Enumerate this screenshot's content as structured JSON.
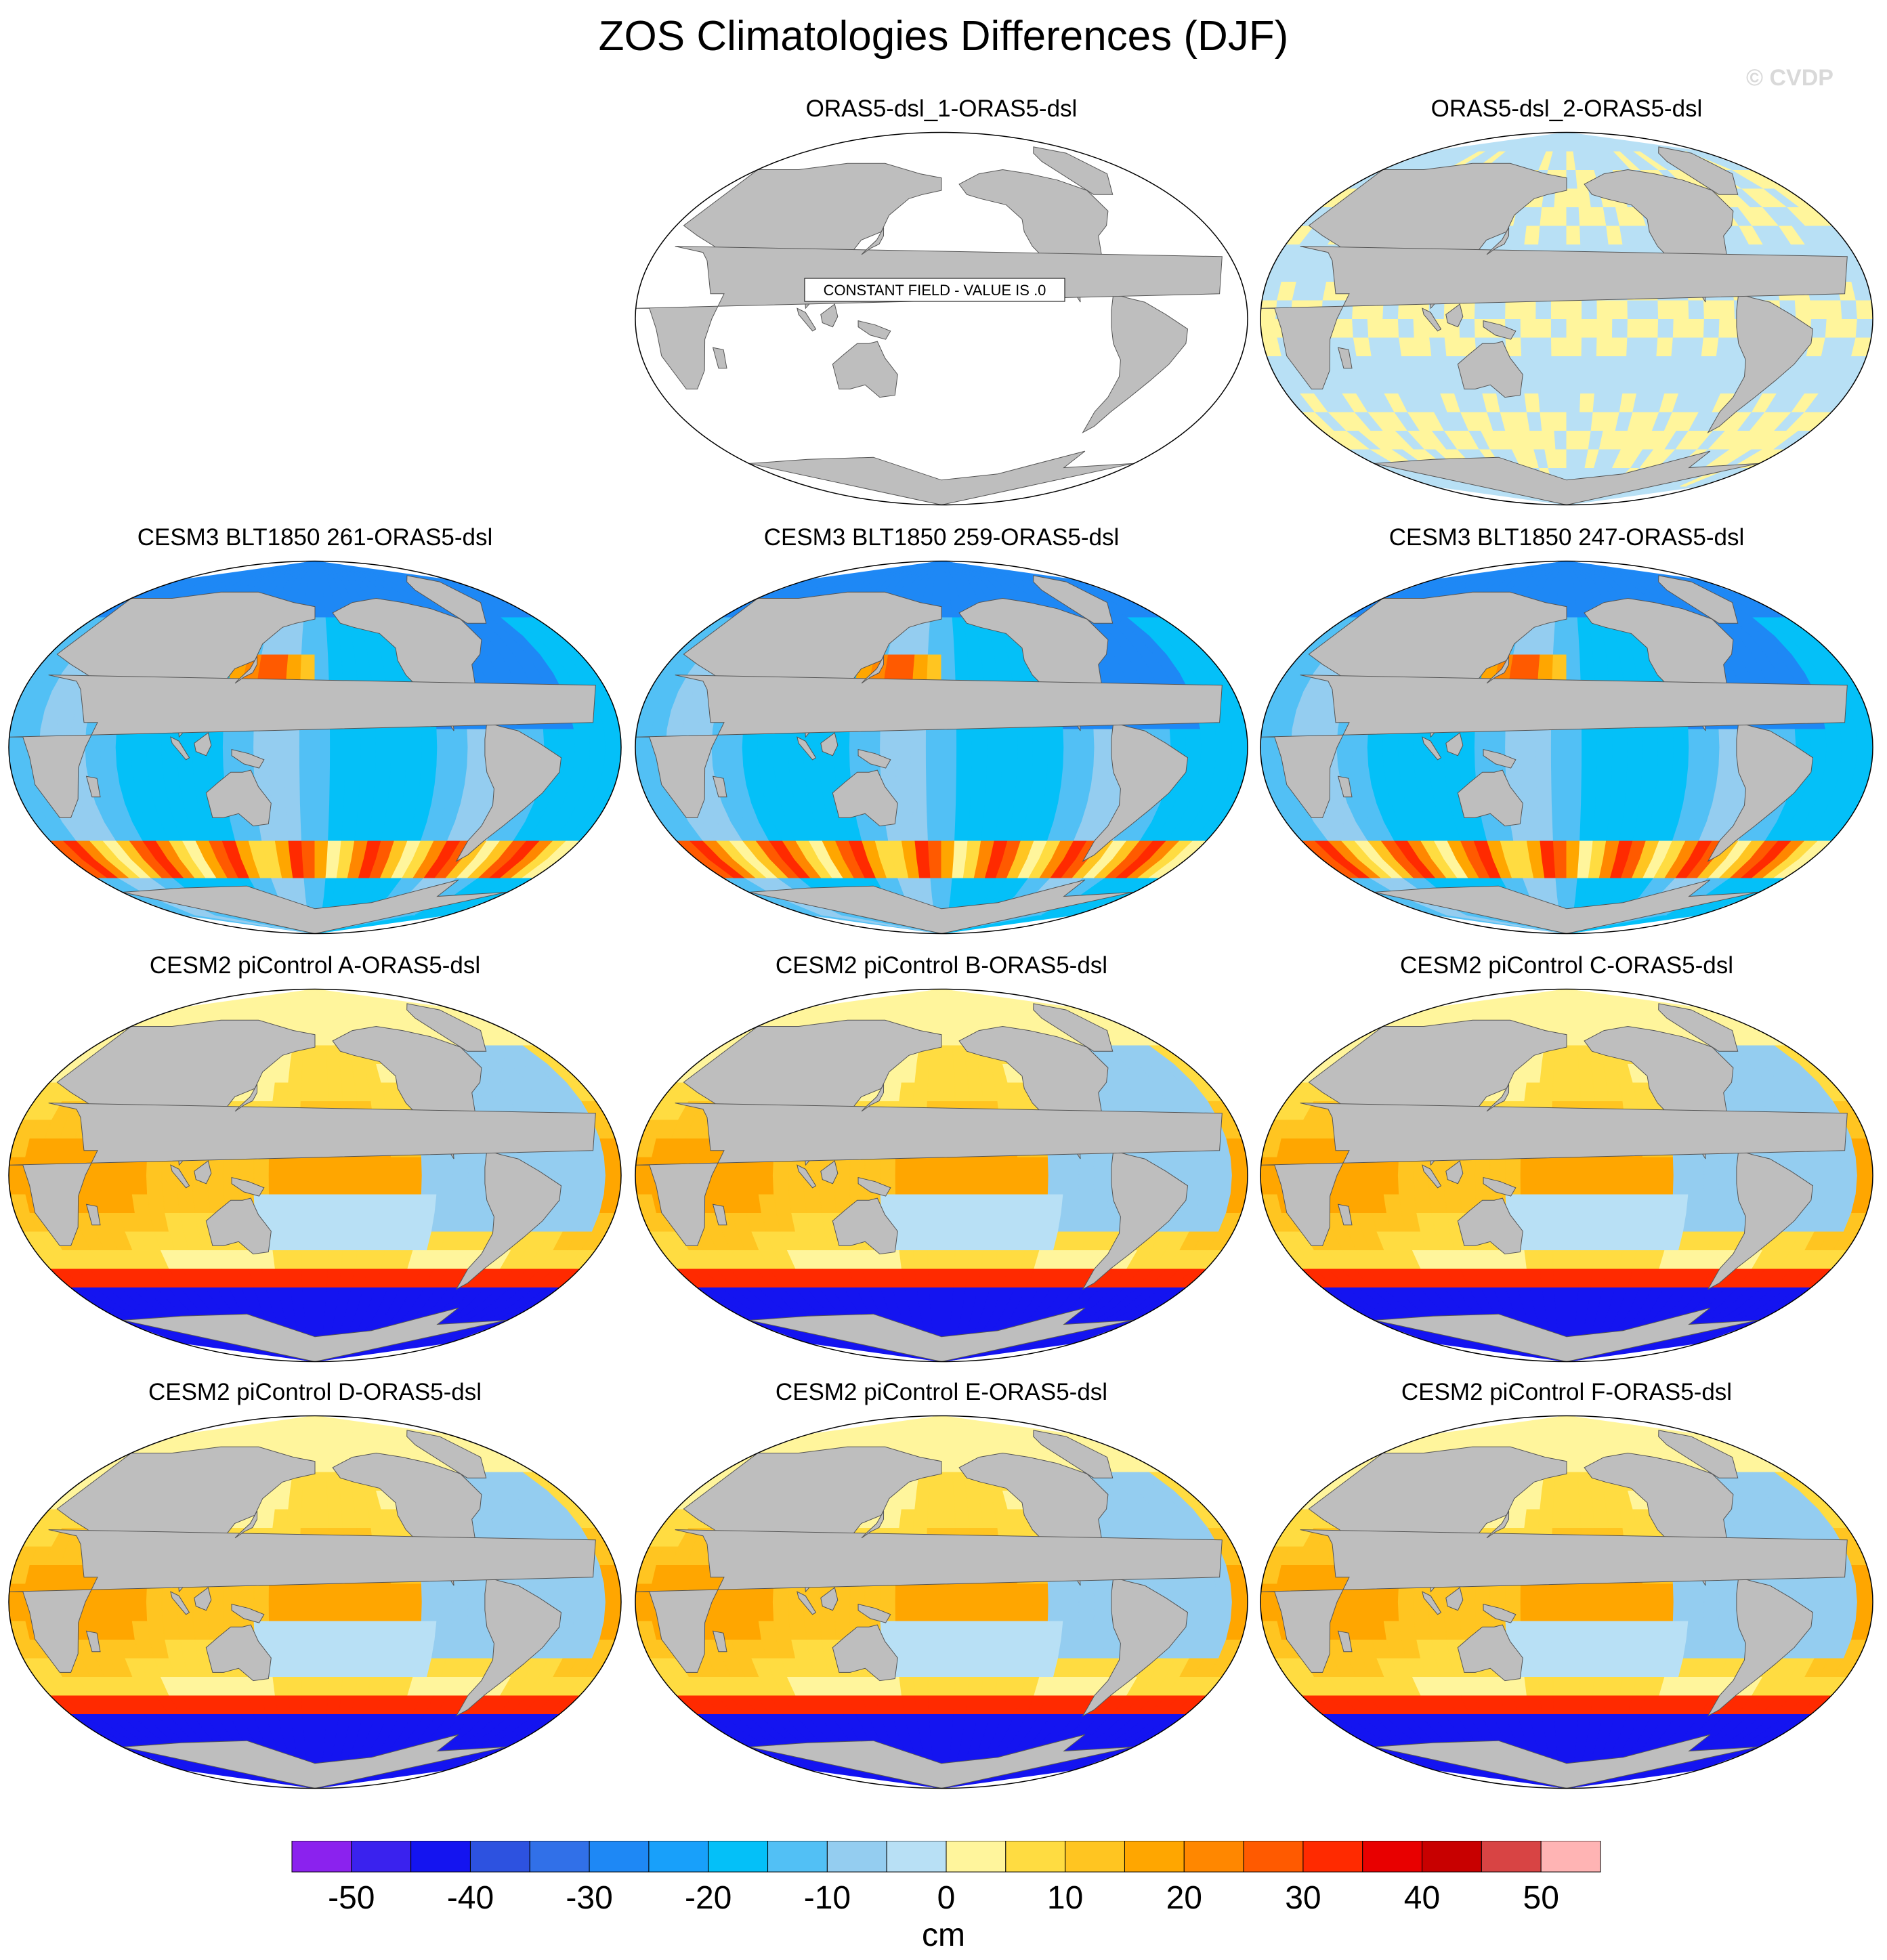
{
  "title": "ZOS Climatologies Differences (DJF)",
  "watermark": "© CVDP",
  "units": "cm",
  "constant_field_label": "CONSTANT FIELD - VALUE IS .0",
  "colors": {
    "land": "#bebebe",
    "levels": [
      "#8b22ee",
      "#3a22ee",
      "#1414f0",
      "#2d52e0",
      "#3170e8",
      "#1e88f5",
      "#18a0fa",
      "#04c0f8",
      "#52c0f5",
      "#94cdf0",
      "#b8e0f5",
      "#fff59c",
      "#ffdc41",
      "#ffc521",
      "#ffa600",
      "#ff8700",
      "#ff5a00",
      "#ff2a00",
      "#e80000",
      "#c80000",
      "#d84444",
      "#ffb4b4"
    ]
  },
  "chart_data": {
    "type": "heatmap",
    "title": "ZOS Climatologies Differences (DJF)",
    "season": "DJF",
    "variable": "ZOS",
    "units": "cm",
    "colorbar": {
      "min": -55,
      "max": 55,
      "interval": 5,
      "tick_values": [
        -50,
        -40,
        -30,
        -20,
        -10,
        0,
        10,
        20,
        30,
        40,
        50
      ],
      "tick_labels": [
        "-50",
        "-40",
        "-30",
        "-20",
        "-10",
        "0",
        "10",
        "20",
        "30",
        "40",
        "50"
      ]
    },
    "panels": [
      {
        "title": "ORAS5-dsl_1-ORAS5-dsl",
        "pattern": "constant",
        "constant_value": 0,
        "annotation": "CONSTANT FIELD - VALUE IS .0"
      },
      {
        "title": "ORAS5-dsl_2-ORAS5-dsl",
        "pattern": "near-zero",
        "range": [
          -5,
          5
        ]
      },
      {
        "title": "CESM3 BLT1850 261-ORAS5-dsl",
        "pattern": "cesm3",
        "range": [
          -50,
          40
        ]
      },
      {
        "title": "CESM3 BLT1850 259-ORAS5-dsl",
        "pattern": "cesm3",
        "range": [
          -50,
          40
        ]
      },
      {
        "title": "CESM3 BLT1850 247-ORAS5-dsl",
        "pattern": "cesm3",
        "range": [
          -50,
          40
        ]
      },
      {
        "title": "CESM2 piControl A-ORAS5-dsl",
        "pattern": "cesm2",
        "range": [
          -55,
          40
        ]
      },
      {
        "title": "CESM2 piControl B-ORAS5-dsl",
        "pattern": "cesm2",
        "range": [
          -55,
          40
        ]
      },
      {
        "title": "CESM2 piControl C-ORAS5-dsl",
        "pattern": "cesm2",
        "range": [
          -55,
          40
        ]
      },
      {
        "title": "CESM2 piControl D-ORAS5-dsl",
        "pattern": "cesm2",
        "range": [
          -55,
          40
        ]
      },
      {
        "title": "CESM2 piControl E-ORAS5-dsl",
        "pattern": "cesm2",
        "range": [
          -55,
          40
        ]
      },
      {
        "title": "CESM2 piControl F-ORAS5-dsl",
        "pattern": "cesm2",
        "range": [
          -55,
          40
        ]
      }
    ]
  }
}
